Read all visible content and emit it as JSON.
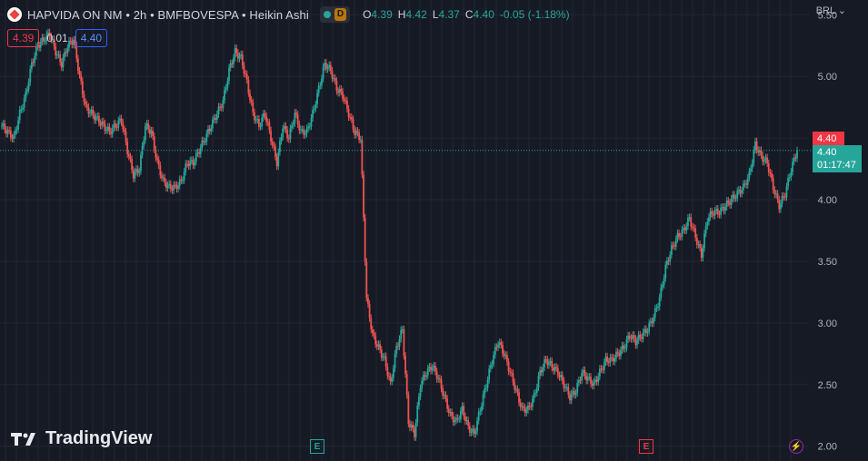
{
  "header": {
    "symbol": "HAPVIDA ON NM",
    "interval": "2h",
    "exchange": "BMFBOVESPA",
    "chart_style": "Heikin Ashi",
    "separator": " • ",
    "status_letter": "D",
    "ohlc": {
      "o_label": "O",
      "o": "4.39",
      "h_label": "H",
      "h": "4.42",
      "l_label": "L",
      "l": "4.37",
      "c_label": "C",
      "c": "4.40",
      "change": "-0.05 (-1.18%)"
    }
  },
  "quote": {
    "bid": "4.39",
    "spread": "0.01",
    "ask": "4.40"
  },
  "currency": "BRL",
  "brand": "TradingView",
  "price_tags": {
    "last": "4.40",
    "close": "4.40",
    "countdown": "01:17:47"
  },
  "events": [
    {
      "label": "E",
      "color": "#26a69a"
    },
    {
      "label": "E",
      "color": "#f23645"
    },
    {
      "label": "⚡",
      "color": "#9c27b0"
    }
  ],
  "colors": {
    "up": "#26a69a",
    "down": "#ef5350",
    "background": "#161a25",
    "grid": "#232632"
  },
  "chart_data": {
    "type": "line",
    "style": "heikin-ashi candlestick",
    "title": "",
    "xlabel": "",
    "ylabel": "",
    "ylim": [
      1.88,
      5.62
    ],
    "yticks": [
      "5.50",
      "5.00",
      "4.50",
      "4.00",
      "3.50",
      "3.00",
      "2.50",
      "2.00"
    ],
    "grid": true,
    "current_price": 4.4,
    "series": [
      {
        "values": [
          4.6,
          4.55,
          4.5,
          4.7,
          4.85,
          5.1,
          5.25,
          5.3,
          5.35,
          5.2,
          5.1,
          5.25,
          5.3,
          5.0,
          4.75,
          4.7,
          4.65,
          4.6,
          4.55,
          4.6,
          4.65,
          4.4,
          4.2,
          4.25,
          4.6,
          4.55,
          4.3,
          4.15,
          4.1,
          4.1,
          4.15,
          4.3,
          4.3,
          4.4,
          4.5,
          4.6,
          4.7,
          4.8,
          5.05,
          5.2,
          5.15,
          4.95,
          4.7,
          4.6,
          4.7,
          4.5,
          4.3,
          4.6,
          4.5,
          4.7,
          4.55,
          4.55,
          4.7,
          4.9,
          5.1,
          5.05,
          4.9,
          4.85,
          4.7,
          4.55,
          4.5,
          3.2,
          2.9,
          2.8,
          2.7,
          2.5,
          2.8,
          2.95,
          2.2,
          2.1,
          2.5,
          2.6,
          2.65,
          2.55,
          2.4,
          2.25,
          2.2,
          2.3,
          2.15,
          2.1,
          2.3,
          2.5,
          2.7,
          2.85,
          2.75,
          2.6,
          2.45,
          2.3,
          2.3,
          2.4,
          2.6,
          2.7,
          2.65,
          2.6,
          2.5,
          2.4,
          2.45,
          2.6,
          2.55,
          2.5,
          2.6,
          2.7,
          2.7,
          2.75,
          2.8,
          2.9,
          2.85,
          2.9,
          2.95,
          3.05,
          3.2,
          3.45,
          3.6,
          3.7,
          3.75,
          3.85,
          3.7,
          3.55,
          3.85,
          3.9,
          3.9,
          3.95,
          4.0,
          4.05,
          4.1,
          4.2,
          4.45,
          4.35,
          4.3,
          4.1,
          3.95,
          4.05,
          4.25,
          4.4
        ]
      }
    ]
  }
}
